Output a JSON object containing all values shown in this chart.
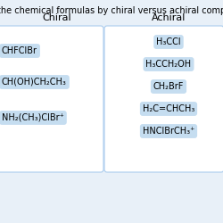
{
  "title": "Sort the chemical formulas by chiral versus achiral compounds.",
  "title_fontsize": 7.0,
  "bg_color": "#e8f0f8",
  "white_box_color": "#ffffff",
  "badge_color": "#c5ddf0",
  "border_color": "#aaccee",
  "text_color": "#000000",
  "chiral_header": "Chiral",
  "achiral_header": "Achiral",
  "chiral_items": [
    "CHFClBr",
    "CH(OH)CH₂CH₃",
    "NH₂(CH₃)ClBr⁺"
  ],
  "achiral_items": [
    "H₃CCl",
    "H₃CCH₂OH",
    "CH₂BrF",
    "H₂C=CHCH₃",
    "HNClBrCH₃⁺"
  ],
  "figsize": [
    2.5,
    2.5
  ],
  "dpi": 100
}
